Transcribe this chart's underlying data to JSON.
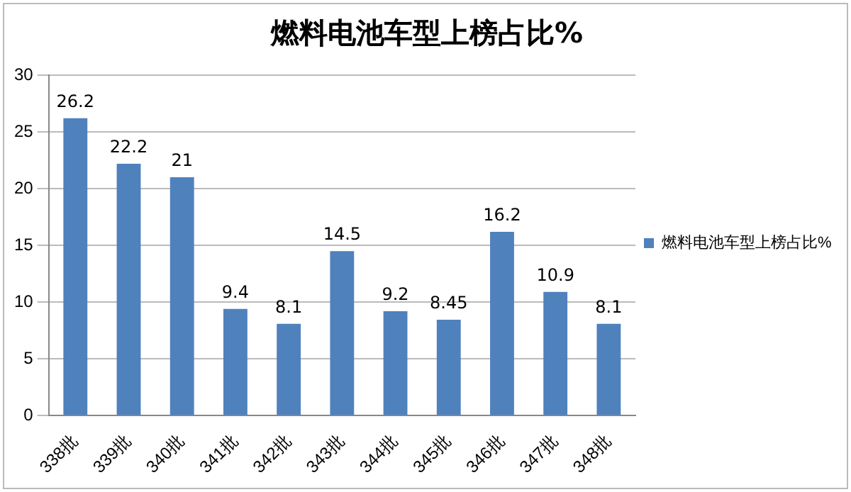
{
  "chart_data": {
    "type": "bar",
    "title": "燃料电池车型上榜占比%",
    "categories": [
      "338批",
      "339批",
      "340批",
      "341批",
      "342批",
      "343批",
      "344批",
      "345批",
      "346批",
      "347批",
      "348批"
    ],
    "series": [
      {
        "name": "燃料电池车型上榜占比%",
        "color": "#4f81bd",
        "values": [
          26.2,
          22.2,
          21,
          9.4,
          8.1,
          14.5,
          9.2,
          8.45,
          16.2,
          10.9,
          8.1
        ]
      }
    ],
    "ylim": [
      0,
      30
    ],
    "yticks": [
      0,
      5,
      10,
      15,
      20,
      25,
      30
    ],
    "grid": "y",
    "legend": "right",
    "data_labels": true
  }
}
